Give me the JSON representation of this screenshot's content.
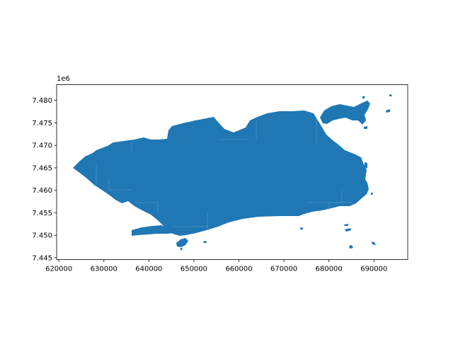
{
  "chart_data": {
    "type": "map",
    "title": "",
    "xlabel": "",
    "ylabel": "",
    "xlim": [
      619500,
      697500
    ],
    "ylim": [
      7444600,
      7483500
    ],
    "y_offset_label": "1e6",
    "x_ticks": [
      620000,
      630000,
      640000,
      650000,
      660000,
      670000,
      680000,
      690000
    ],
    "x_tick_labels": [
      "620000",
      "630000",
      "640000",
      "650000",
      "660000",
      "670000",
      "680000",
      "690000"
    ],
    "y_ticks": [
      7445000,
      7450000,
      7455000,
      7460000,
      7465000,
      7470000,
      7475000,
      7480000
    ],
    "y_tick_labels": [
      "7.445",
      "7.450",
      "7.455",
      "7.460",
      "7.465",
      "7.470",
      "7.475",
      "7.480"
    ],
    "fill_color": "#1f77b4",
    "edge_color": "#ffffff",
    "grid": false,
    "legend": "none"
  }
}
